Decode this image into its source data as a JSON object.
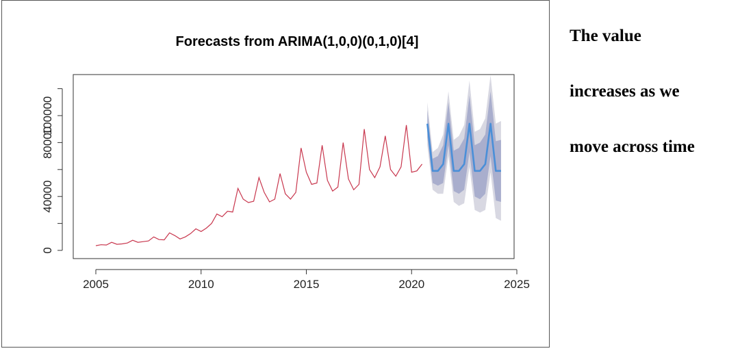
{
  "chart_data": {
    "type": "line",
    "title": "Forecasts from ARIMA(1,0,0)(0,1,0)[4]",
    "xlabel": "",
    "ylabel": "",
    "xlim": [
      2005,
      2025
    ],
    "ylim": [
      0,
      120000
    ],
    "x_ticks": [
      "2005",
      "2010",
      "2015",
      "2020",
      "2025"
    ],
    "y_ticks": [
      "0",
      "40000",
      "80000",
      "100000"
    ],
    "grid": false,
    "legend": "none",
    "colors": {
      "history": "#c8364d",
      "forecast": "#4a8fd8",
      "band80": "#a9aecd",
      "band95": "#d8d8e2"
    },
    "series": [
      {
        "role": "history",
        "x": [
          2005.0,
          2005.25,
          2005.5,
          2005.75,
          2006.0,
          2006.25,
          2006.5,
          2006.75,
          2007.0,
          2007.25,
          2007.5,
          2007.75,
          2008.0,
          2008.25,
          2008.5,
          2008.75,
          2009.0,
          2009.25,
          2009.5,
          2009.75,
          2010.0,
          2010.25,
          2010.5,
          2010.75,
          2011.0,
          2011.25,
          2011.5,
          2011.75,
          2012.0,
          2012.25,
          2012.5,
          2012.75,
          2013.0,
          2013.25,
          2013.5,
          2013.75,
          2014.0,
          2014.25,
          2014.5,
          2014.75,
          2015.0,
          2015.25,
          2015.5,
          2015.75,
          2016.0,
          2016.25,
          2016.5,
          2016.75,
          2017.0,
          2017.25,
          2017.5,
          2017.75,
          2018.0,
          2018.25,
          2018.5,
          2018.75,
          2019.0,
          2019.25,
          2019.5,
          2019.75,
          2020.0,
          2020.25,
          2020.5
        ],
        "values": [
          3500,
          4200,
          4000,
          6000,
          4500,
          4800,
          5500,
          7500,
          6000,
          6500,
          7000,
          10000,
          8000,
          7800,
          13000,
          11000,
          8500,
          10000,
          12500,
          16000,
          14000,
          16500,
          20000,
          27000,
          25000,
          29000,
          28500,
          46000,
          38000,
          35500,
          36500,
          54000,
          43000,
          36000,
          38000,
          57000,
          42000,
          38000,
          43000,
          76000,
          58000,
          49000,
          50000,
          78000,
          52000,
          44000,
          47000,
          80000,
          53000,
          45000,
          49000,
          90000,
          60000,
          54000,
          62000,
          85000,
          60000,
          55000,
          62000,
          93000,
          58000,
          59000,
          64000
        ]
      },
      {
        "role": "forecast",
        "x": [
          2020.75,
          2021.0,
          2021.25,
          2021.5,
          2021.75,
          2022.0,
          2022.25,
          2022.5,
          2022.75,
          2023.0,
          2023.25,
          2023.5,
          2023.75,
          2024.0,
          2024.25
        ],
        "values": [
          94000,
          59000,
          59000,
          64000,
          94000,
          59000,
          59000,
          64000,
          94000,
          59000,
          59000,
          64000,
          94000,
          59000,
          59000
        ],
        "lo80": [
          84000,
          50000,
          48000,
          50000,
          78000,
          44000,
          42000,
          45000,
          73000,
          40000,
          38000,
          42000,
          70000,
          37000,
          36000
        ],
        "hi80": [
          104000,
          68000,
          70000,
          78000,
          110000,
          74000,
          76000,
          83000,
          115000,
          78000,
          80000,
          86000,
          118000,
          81000,
          82000
        ],
        "lo95": [
          78000,
          45000,
          42000,
          42000,
          70000,
          36000,
          33000,
          35000,
          62000,
          30000,
          28000,
          30000,
          58000,
          24000,
          22000
        ],
        "hi95": [
          110000,
          73000,
          76000,
          86000,
          118000,
          82000,
          85000,
          93000,
          126000,
          88000,
          90000,
          98000,
          130000,
          94000,
          96000
        ]
      }
    ]
  },
  "note": {
    "line1": "The value",
    "line2": "increases as we",
    "line3": "move across time"
  }
}
